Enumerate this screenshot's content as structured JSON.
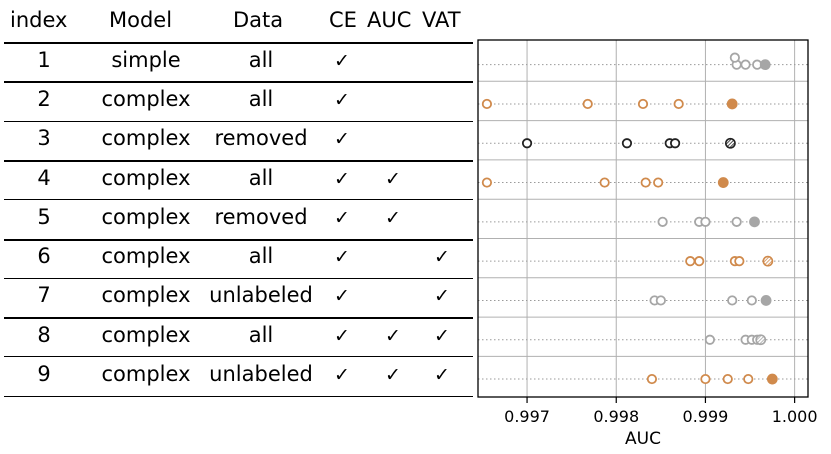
{
  "table": {
    "headers": {
      "index": "index",
      "model": "Model",
      "data": "Data",
      "ce": "CE",
      "auc": "AUC",
      "vat": "VAT"
    },
    "check": "✓",
    "rows": [
      {
        "index": "1",
        "model": "simple",
        "data": "all",
        "ce": true,
        "auc": false,
        "vat": false
      },
      {
        "index": "2",
        "model": "complex",
        "data": "all",
        "ce": true,
        "auc": false,
        "vat": false
      },
      {
        "index": "3",
        "model": "complex",
        "data": "removed",
        "ce": true,
        "auc": false,
        "vat": false
      },
      {
        "index": "4",
        "model": "complex",
        "data": "all",
        "ce": true,
        "auc": true,
        "vat": false
      },
      {
        "index": "5",
        "model": "complex",
        "data": "removed",
        "ce": true,
        "auc": true,
        "vat": false
      },
      {
        "index": "6",
        "model": "complex",
        "data": "all",
        "ce": true,
        "auc": false,
        "vat": true
      },
      {
        "index": "7",
        "model": "complex",
        "data": "unlabeled",
        "ce": true,
        "auc": false,
        "vat": true
      },
      {
        "index": "8",
        "model": "complex",
        "data": "all",
        "ce": true,
        "auc": true,
        "vat": true
      },
      {
        "index": "9",
        "model": "complex",
        "data": "unlabeled",
        "ce": true,
        "auc": true,
        "vat": true
      }
    ]
  },
  "chart_data": {
    "type": "scatter",
    "xlabel": "AUC",
    "ylabel": "",
    "xlim": [
      0.99645,
      1.00015
    ],
    "xticks": [
      0.997,
      0.998,
      0.999,
      1.0
    ],
    "xtick_labels": [
      "0.997",
      "0.998",
      "0.999",
      "1.000"
    ],
    "grid": true,
    "colors": {
      "orange": "#d08a4c",
      "gray": "#a6a6a6",
      "black": "#222222",
      "dotted_row": "#9a9a9a"
    },
    "rows": [
      {
        "index": 1,
        "color": "gray",
        "runs": [
          0.99935,
          0.99933,
          0.99945,
          0.99958
        ],
        "best": 0.99967,
        "best_style": "filled"
      },
      {
        "index": 2,
        "color": "orange",
        "runs": [
          0.99655,
          0.99768,
          0.9983,
          0.9987
        ],
        "best": 0.9993,
        "best_style": "filled"
      },
      {
        "index": 3,
        "color": "black",
        "runs": [
          0.997,
          0.99812,
          0.9986,
          0.99866
        ],
        "best": 0.99928,
        "best_style": "hatched"
      },
      {
        "index": 4,
        "color": "orange",
        "runs": [
          0.99655,
          0.99787,
          0.99833,
          0.99847
        ],
        "best": 0.9992,
        "best_style": "filled"
      },
      {
        "index": 5,
        "color": "gray",
        "runs": [
          0.99852,
          0.99893,
          0.999,
          0.99935
        ],
        "best": 0.99955,
        "best_style": "filled"
      },
      {
        "index": 6,
        "color": "orange",
        "runs": [
          0.99883,
          0.99893,
          0.99933,
          0.99938
        ],
        "best": 0.9997,
        "best_style": "hatched"
      },
      {
        "index": 7,
        "color": "gray",
        "runs": [
          0.99843,
          0.9985,
          0.9993,
          0.99952
        ],
        "best": 0.99968,
        "best_style": "filled"
      },
      {
        "index": 8,
        "color": "gray",
        "runs": [
          0.99905,
          0.99945,
          0.99952,
          0.99958
        ],
        "best": 0.99962,
        "best_style": "hatched"
      },
      {
        "index": 9,
        "color": "orange",
        "runs": [
          0.9984,
          0.999,
          0.99925,
          0.99948
        ],
        "best": 0.99975,
        "best_style": "filled"
      }
    ]
  }
}
